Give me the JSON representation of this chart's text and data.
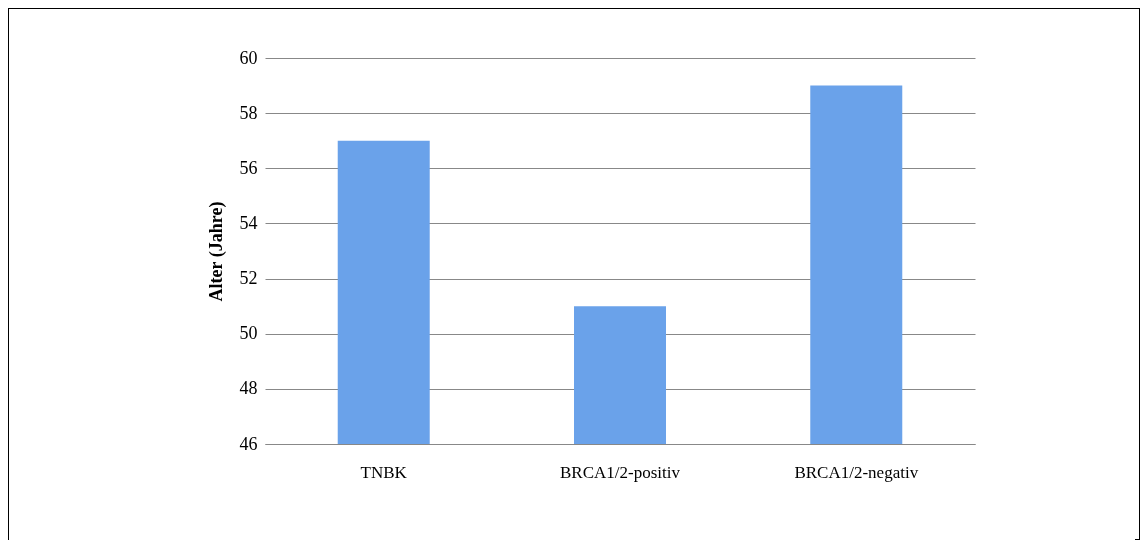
{
  "chart_data": {
    "type": "bar",
    "ylabel": "Alter (Jahre)",
    "categories": [
      "TNBK",
      "BRCA1/2-positiv",
      "BRCA1/2-negativ"
    ],
    "values": [
      57,
      51,
      59
    ],
    "color": "#6aa2ea",
    "ylim": [
      46,
      60
    ],
    "yticks": [
      46,
      48,
      50,
      52,
      54,
      56,
      58,
      60
    ],
    "grid": "y"
  }
}
